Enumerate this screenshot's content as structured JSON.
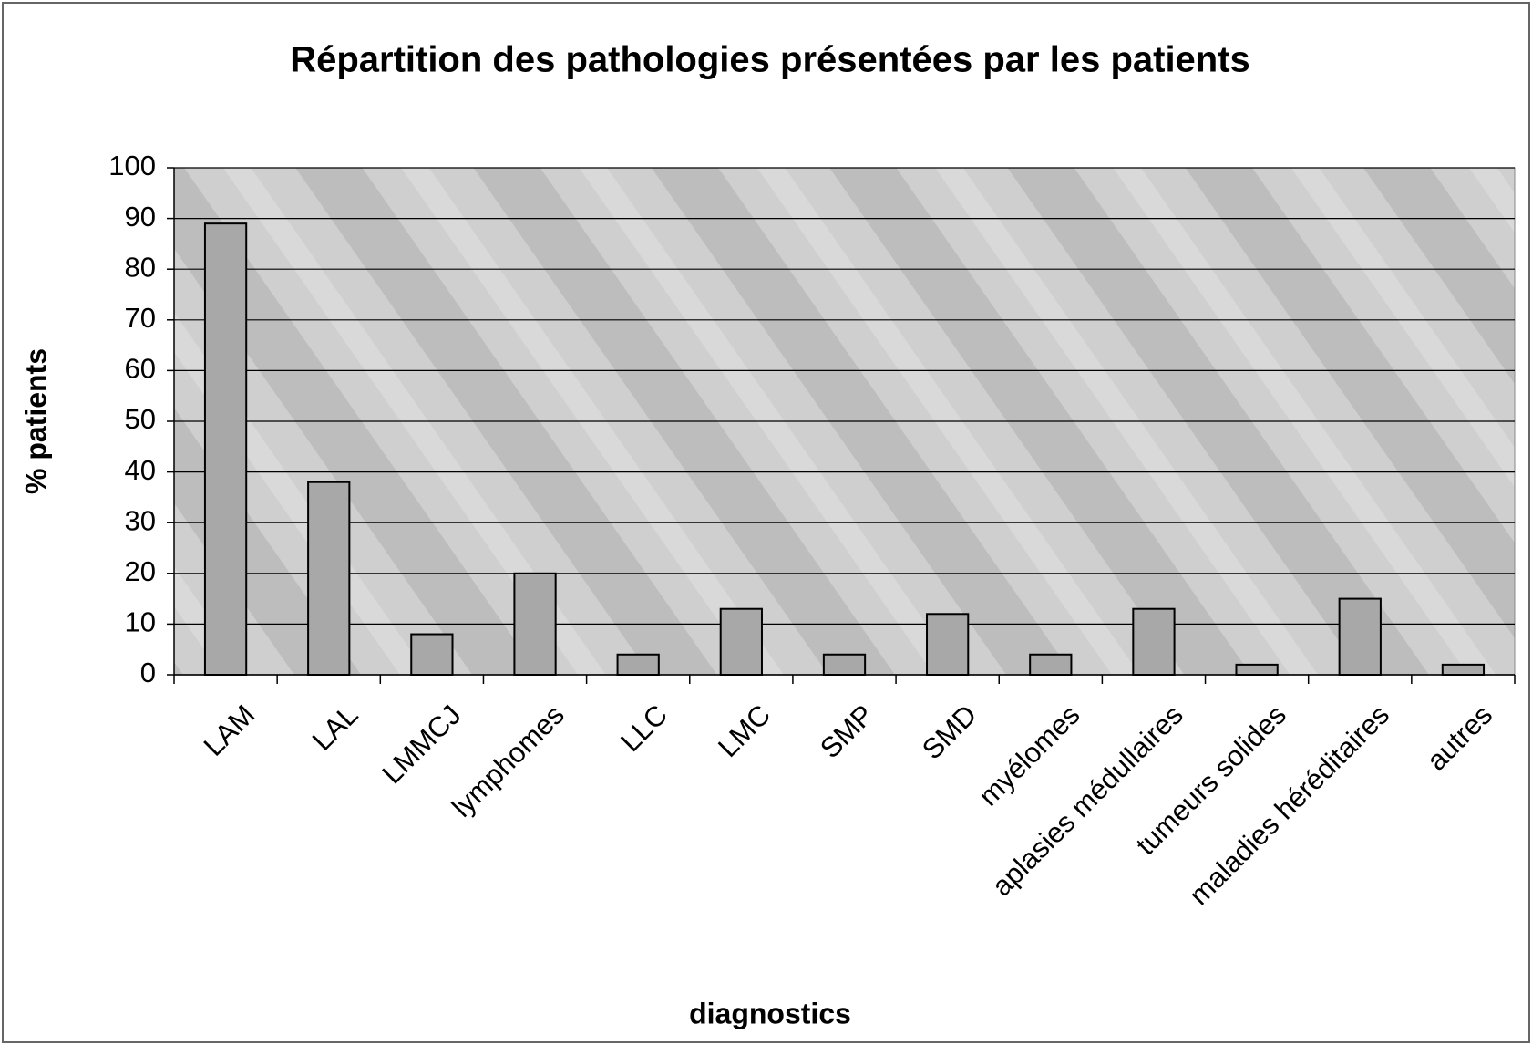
{
  "chart_data": {
    "type": "bar",
    "title": "Répartition des pathologies présentées par les patients",
    "x_label": "diagnostics",
    "y_label": "% patients",
    "categories": [
      "LAM",
      "LAL",
      "LMMCJ",
      "lymphomes",
      "LLC",
      "LMC",
      "SMP",
      "SMD",
      "myélomes",
      "aplasies médullaires",
      "tumeurs solides",
      "maladies héréditaires",
      "autres"
    ],
    "values": [
      89,
      38,
      8,
      20,
      4,
      13,
      4,
      12,
      4,
      13,
      2,
      15,
      2
    ],
    "color": "#a8a8a8",
    "ylim": [
      0,
      100
    ],
    "yticks": [
      0,
      10,
      20,
      30,
      40,
      50,
      60,
      70,
      80,
      90,
      100
    ],
    "grid": true
  }
}
